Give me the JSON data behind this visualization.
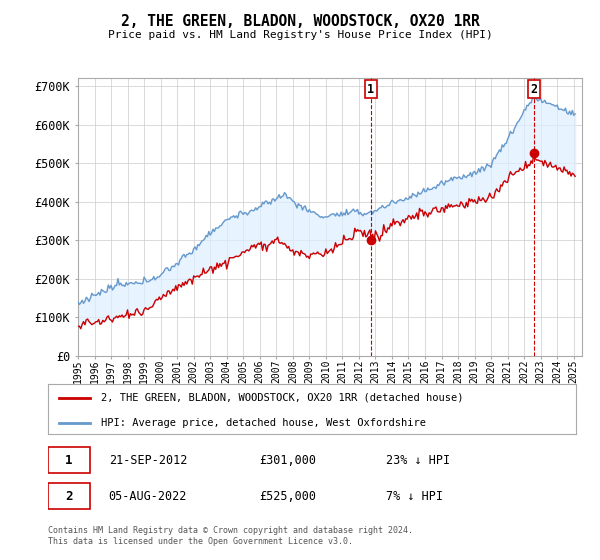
{
  "title": "2, THE GREEN, BLADON, WOODSTOCK, OX20 1RR",
  "subtitle": "Price paid vs. HM Land Registry's House Price Index (HPI)",
  "ylabel_ticks": [
    "£0",
    "£100K",
    "£200K",
    "£300K",
    "£400K",
    "£500K",
    "£600K",
    "£700K"
  ],
  "ylim": [
    0,
    720000
  ],
  "ytick_values": [
    0,
    100000,
    200000,
    300000,
    400000,
    500000,
    600000,
    700000
  ],
  "hpi_color": "#6699cc",
  "hpi_fill_color": "#ddeeff",
  "price_color": "#cc0000",
  "vline_color": "#cc0000",
  "t1": 2012.72,
  "t2": 2022.59,
  "sale1_price": 301000,
  "sale2_price": 525000,
  "legend_label1": "2, THE GREEN, BLADON, WOODSTOCK, OX20 1RR (detached house)",
  "legend_label2": "HPI: Average price, detached house, West Oxfordshire",
  "annot1_date": "21-SEP-2012",
  "annot1_price": "£301,000",
  "annot1_hpi": "23% ↓ HPI",
  "annot2_date": "05-AUG-2022",
  "annot2_price": "£525,000",
  "annot2_hpi": "7% ↓ HPI",
  "footer": "Contains HM Land Registry data © Crown copyright and database right 2024.\nThis data is licensed under the Open Government Licence v3.0.",
  "background_color": "#ffffff",
  "plot_bg_color": "#ffffff",
  "grid_color": "#cccccc"
}
